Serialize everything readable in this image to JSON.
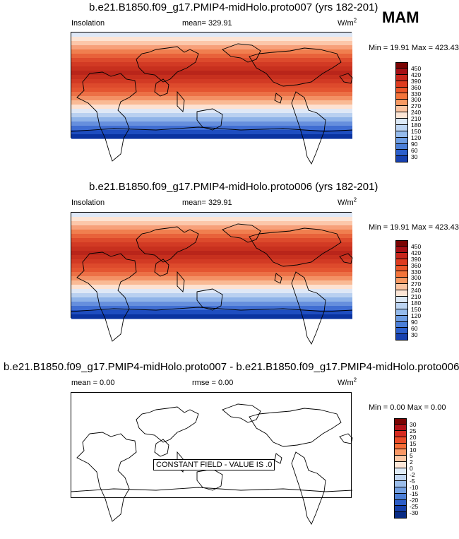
{
  "season": "MAM",
  "panels": [
    {
      "title": "b.e21.B1850.f09_g17.PMIP4-midHolo.proto007 (yrs 182-201)",
      "left_label": "Insolation",
      "center_label": "mean= 329.91",
      "units": "W/m",
      "units_sup": "2",
      "minmax": "Min =  19.91 Max = 423.43",
      "colorbar_labels": [
        "450",
        "420",
        "390",
        "360",
        "330",
        "300",
        "270",
        "240",
        "210",
        "180",
        "150",
        "120",
        "90",
        "60",
        "30"
      ]
    },
    {
      "title": "b.e21.B1850.f09_g17.PMIP4-midHolo.proto006 (yrs 182-201)",
      "left_label": "Insolation",
      "center_label": "mean= 329.91",
      "units": "W/m",
      "units_sup": "2",
      "minmax": "Min =  19.91 Max = 423.43",
      "colorbar_labels": [
        "450",
        "420",
        "390",
        "360",
        "330",
        "300",
        "270",
        "240",
        "210",
        "180",
        "150",
        "120",
        "90",
        "60",
        "30"
      ]
    },
    {
      "title": "b.e21.B1850.f09_g17.PMIP4-midHolo.proto007 - b.e21.B1850.f09_g17.PMIP4-midHolo.proto006",
      "left_label": "mean =   0.00",
      "center_label": "rmse =   0.00",
      "units": "W/m",
      "units_sup": "2",
      "minmax": "Min =   0.00 Max =   0.00",
      "message": "CONSTANT FIELD - VALUE IS .0",
      "colorbar_labels": [
        "30",
        "25",
        "20",
        "15",
        "10",
        "5",
        "2",
        "0",
        "-2",
        "-5",
        "-10",
        "-15",
        "-20",
        "-25",
        "-30"
      ]
    }
  ],
  "colors": {
    "insolation_scale": [
      "#7a0403",
      "#a50f15",
      "#c8261c",
      "#de3b1f",
      "#ec5629",
      "#f4743a",
      "#f89a63",
      "#fcc5a2",
      "#fde6d6",
      "#dce9f6",
      "#bcd4f2",
      "#95bbec",
      "#6e9de3",
      "#4b7fd8",
      "#2c5fcc",
      "#1741b0",
      "#0a2c8e"
    ],
    "diff_scale": [
      "#7a0403",
      "#b11218",
      "#d52a1f",
      "#e94b28",
      "#f56d37",
      "#f99765",
      "#fcc8a6",
      "#fee8d9",
      "#e0ecf8",
      "#c2d7f2",
      "#9bbdea",
      "#739fe0",
      "#4c7fd6",
      "#2c5dc6",
      "#153fa8",
      "#082b84"
    ]
  },
  "map_bands": [
    "#dfe8f6",
    "#fde4d4",
    "#fcc7aa",
    "#f7a07a",
    "#f07f4f",
    "#e8623a",
    "#dd4a2c",
    "#d23a24",
    "#c7301e",
    "#b9251a",
    "#c7301e",
    "#d23a24",
    "#dd4a2c",
    "#e45531",
    "#ec7046",
    "#f39165",
    "#f9ba95",
    "#fde2d2",
    "#dfe8f6",
    "#b9d0f0",
    "#8fb3e8",
    "#668fdd",
    "#3f6dd2",
    "#1e4dc0",
    "#0a33a0"
  ]
}
